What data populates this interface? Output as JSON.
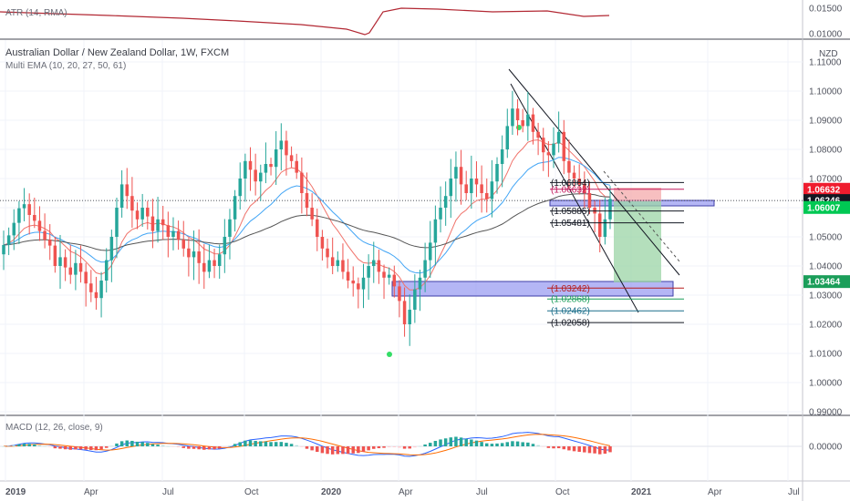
{
  "header": {
    "title": "Australian Dollar / New Zealand Dollar, 1W, FXCM",
    "indicator": "Multi EMA (10, 20, 27, 50, 61)",
    "atr_label": "ATR (14, RMA)",
    "macd_label": "MACD (12, 26, close, 9)",
    "currency": "NZD"
  },
  "colors": {
    "up": "#26a69a",
    "down": "#ef5350",
    "ema_fast": "#f0736b",
    "ema_mid": "#42a5f5",
    "ema_slow": "#555555",
    "atr": "#b22833",
    "macd": "#2962ff",
    "signal": "#ff6d00",
    "zone": "#8c8ff0",
    "profit": "#9bd4a6",
    "loss": "#f4a9ab"
  },
  "chart_data": {
    "type": "candlestick",
    "x_tick_labels": [
      "2019",
      "Apr",
      "Jul",
      "Oct",
      "2020",
      "Apr",
      "Jul",
      "Oct",
      "2021",
      "Apr",
      "Jul"
    ],
    "y_tick_labels": [
      "1.11000",
      "1.10000",
      "1.09000",
      "1.08000",
      "1.07000",
      "1.06000",
      "1.05000",
      "1.04000",
      "1.03000",
      "1.02000",
      "1.01000",
      "1.00000",
      "0.99000"
    ],
    "atr_ticks": [
      "0.01500",
      "0.01000"
    ],
    "macd_ticks": [
      "0.00000"
    ],
    "ylim": [
      0.99,
      1.1125
    ],
    "level_labels": [
      "(1.06864)",
      "(1.06632)",
      "(1.05885)",
      "(1.05481)",
      "(1.03242)",
      "(1.02868)",
      "(1.02462)",
      "(1.02058)"
    ],
    "levels": [
      1.06864,
      1.06632,
      1.05885,
      1.05481,
      1.03242,
      1.02868,
      1.02462,
      1.02058
    ],
    "price_tags": [
      {
        "label": "1.06632",
        "value": 1.06632,
        "color": "#ef1c2e"
      },
      {
        "label": "1.06246",
        "value": 1.06246,
        "color": "#131722"
      },
      {
        "label": "1.06007",
        "value": 1.06007,
        "color": "#00c853"
      },
      {
        "label": "1.03464",
        "value": 1.03464,
        "color": "#1b9e5a"
      }
    ],
    "last_price": 1.06246
  }
}
